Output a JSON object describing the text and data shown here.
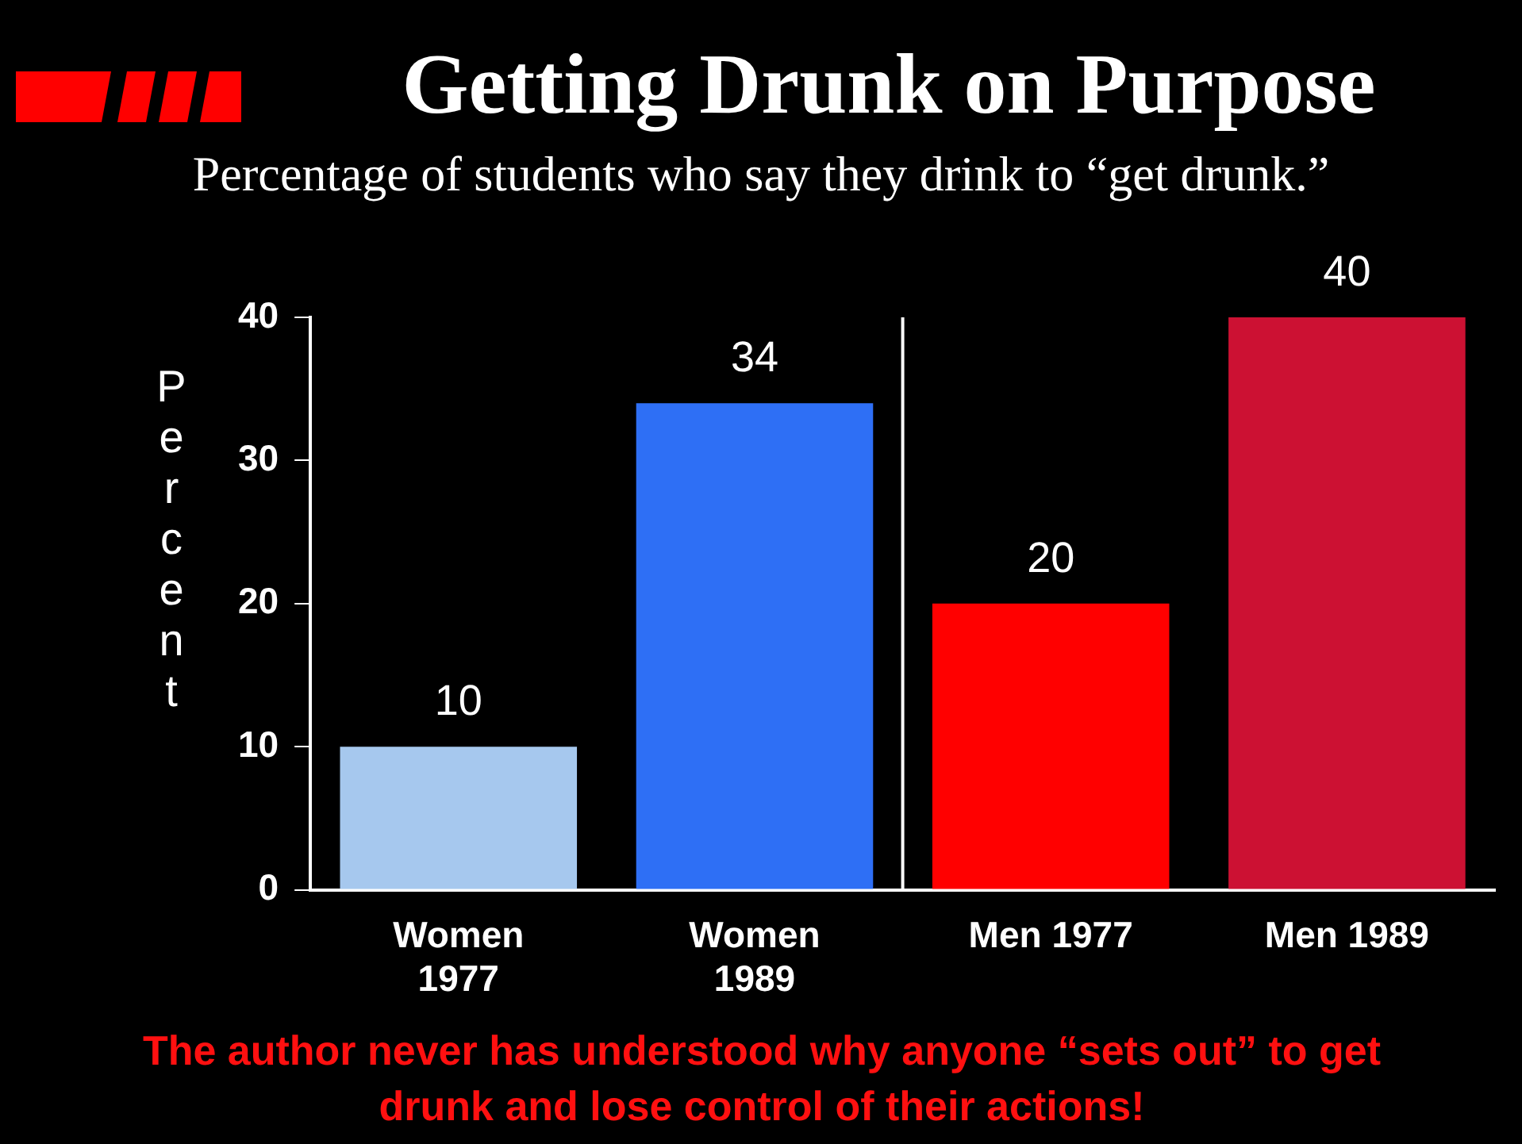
{
  "chart_data": {
    "type": "bar",
    "title": "Getting Drunk on Purpose",
    "subtitle": "Percentage of students who say they drink to “get drunk.”",
    "ylabel": "Percent",
    "categories": [
      "Women 1977",
      "Women 1989",
      "Men 1977",
      "Men 1989"
    ],
    "values": [
      10,
      34,
      20,
      40
    ],
    "colors": [
      "#a6c8ee",
      "#2e6ff5",
      "#ff0000",
      "#cc1133"
    ],
    "ylim": [
      0,
      40
    ],
    "yticks": [
      0,
      10,
      20,
      30,
      40
    ],
    "grid": false,
    "legend": false,
    "data_labels": true,
    "annotations": [
      "The author never has understood why anyone “sets out” to get drunk and lose control of their actions!"
    ]
  }
}
